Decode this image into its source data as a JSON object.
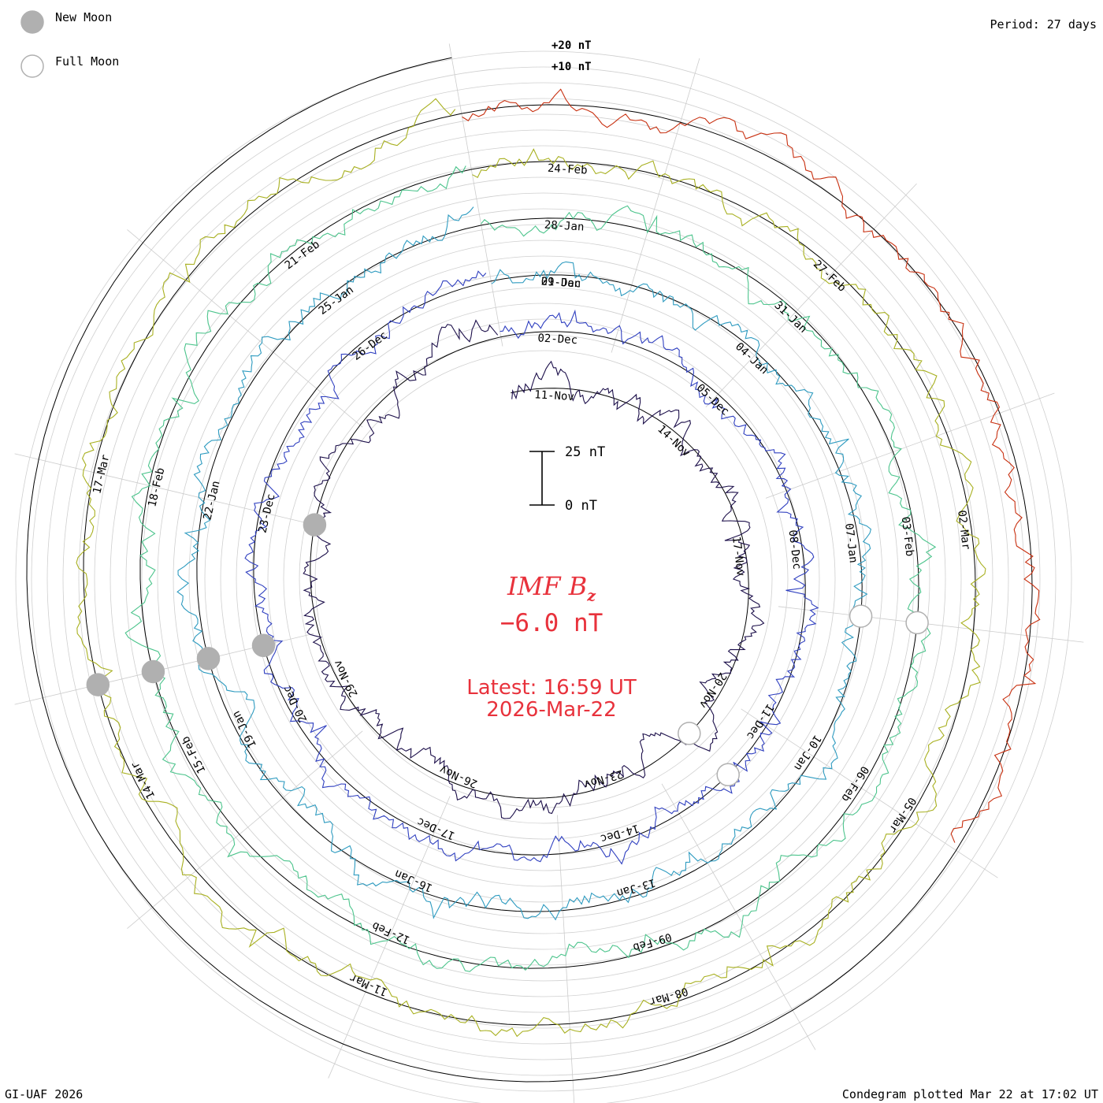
{
  "legend": {
    "new_moon_label": "New Moon",
    "full_moon_label": "Full Moon",
    "new_moon_color": "#b0b0b0",
    "full_moon_color": "#b0b0b0"
  },
  "period_label": "Period: 27 days",
  "footer_left": "GI-UAF 2026",
  "footer_right": "Condegram plotted Mar 22 at 17:02 UT",
  "center": {
    "title_main": "IMF B",
    "title_sub": "z",
    "value": "−6.0 nT",
    "latest": "Latest: 16:59 UT",
    "date": "2026-Mar-22",
    "color": "#e8323c"
  },
  "chart_data": {
    "type": "line",
    "title": "IMF Bz",
    "period_days": 27,
    "scale_bar": {
      "top_label": "25 nT",
      "bottom_label": "0 nT",
      "top_value": 25,
      "bottom_value": 0
    },
    "ring_labels": [
      "+20 nT",
      "+10 nT"
    ],
    "ring_values": [
      20,
      10
    ],
    "series": [
      {
        "name": "Nov",
        "color": "#1c0f4a",
        "start_day": 0,
        "dates": [
          "11-Nov",
          "14-Nov",
          "17-Nov",
          "20-Nov",
          "23-Nov",
          "26-Nov",
          "29-Nov"
        ]
      },
      {
        "name": "Dec",
        "color": "#3040c0",
        "start_day": 27,
        "dates": [
          "02-Dec",
          "05-Dec",
          "08-Dec",
          "11-Dec",
          "14-Dec",
          "17-Dec",
          "20-Dec",
          "23-Dec",
          "26-Dec",
          "29-Dec"
        ]
      },
      {
        "name": "Jan-a",
        "color": "#2e9bc0",
        "start_day": 54,
        "dates": [
          "01-Jan",
          "04-Jan",
          "07-Jan",
          "10-Jan",
          "13-Jan",
          "16-Jan",
          "19-Jan",
          "22-Jan",
          "25-Jan"
        ]
      },
      {
        "name": "Jan-b",
        "color": "#4cc48c",
        "start_day": 81,
        "dates": [
          "28-Jan",
          "31-Jan",
          "03-Feb",
          "06-Feb",
          "09-Feb",
          "12-Feb",
          "15-Feb",
          "18-Feb",
          "21-Feb"
        ]
      },
      {
        "name": "Feb",
        "color": "#a8b020",
        "start_day": 108,
        "dates": [
          "24-Feb",
          "27-Feb",
          "02-Mar",
          "05-Mar",
          "08-Mar",
          "11-Mar",
          "14-Mar",
          "17-Mar"
        ]
      },
      {
        "name": "Mar",
        "color": "#c83010",
        "start_day": 135,
        "dates": []
      }
    ],
    "moon_phases": [
      {
        "type": "new",
        "day": 22
      },
      {
        "type": "new",
        "day": 47
      },
      {
        "type": "new",
        "day": 74
      },
      {
        "type": "new",
        "day": 101
      },
      {
        "type": "new",
        "day": 128
      },
      {
        "type": "full",
        "day": 11
      },
      {
        "type": "full",
        "day": 38
      },
      {
        "type": "full",
        "day": 62
      },
      {
        "type": "full",
        "day": 89
      }
    ]
  }
}
